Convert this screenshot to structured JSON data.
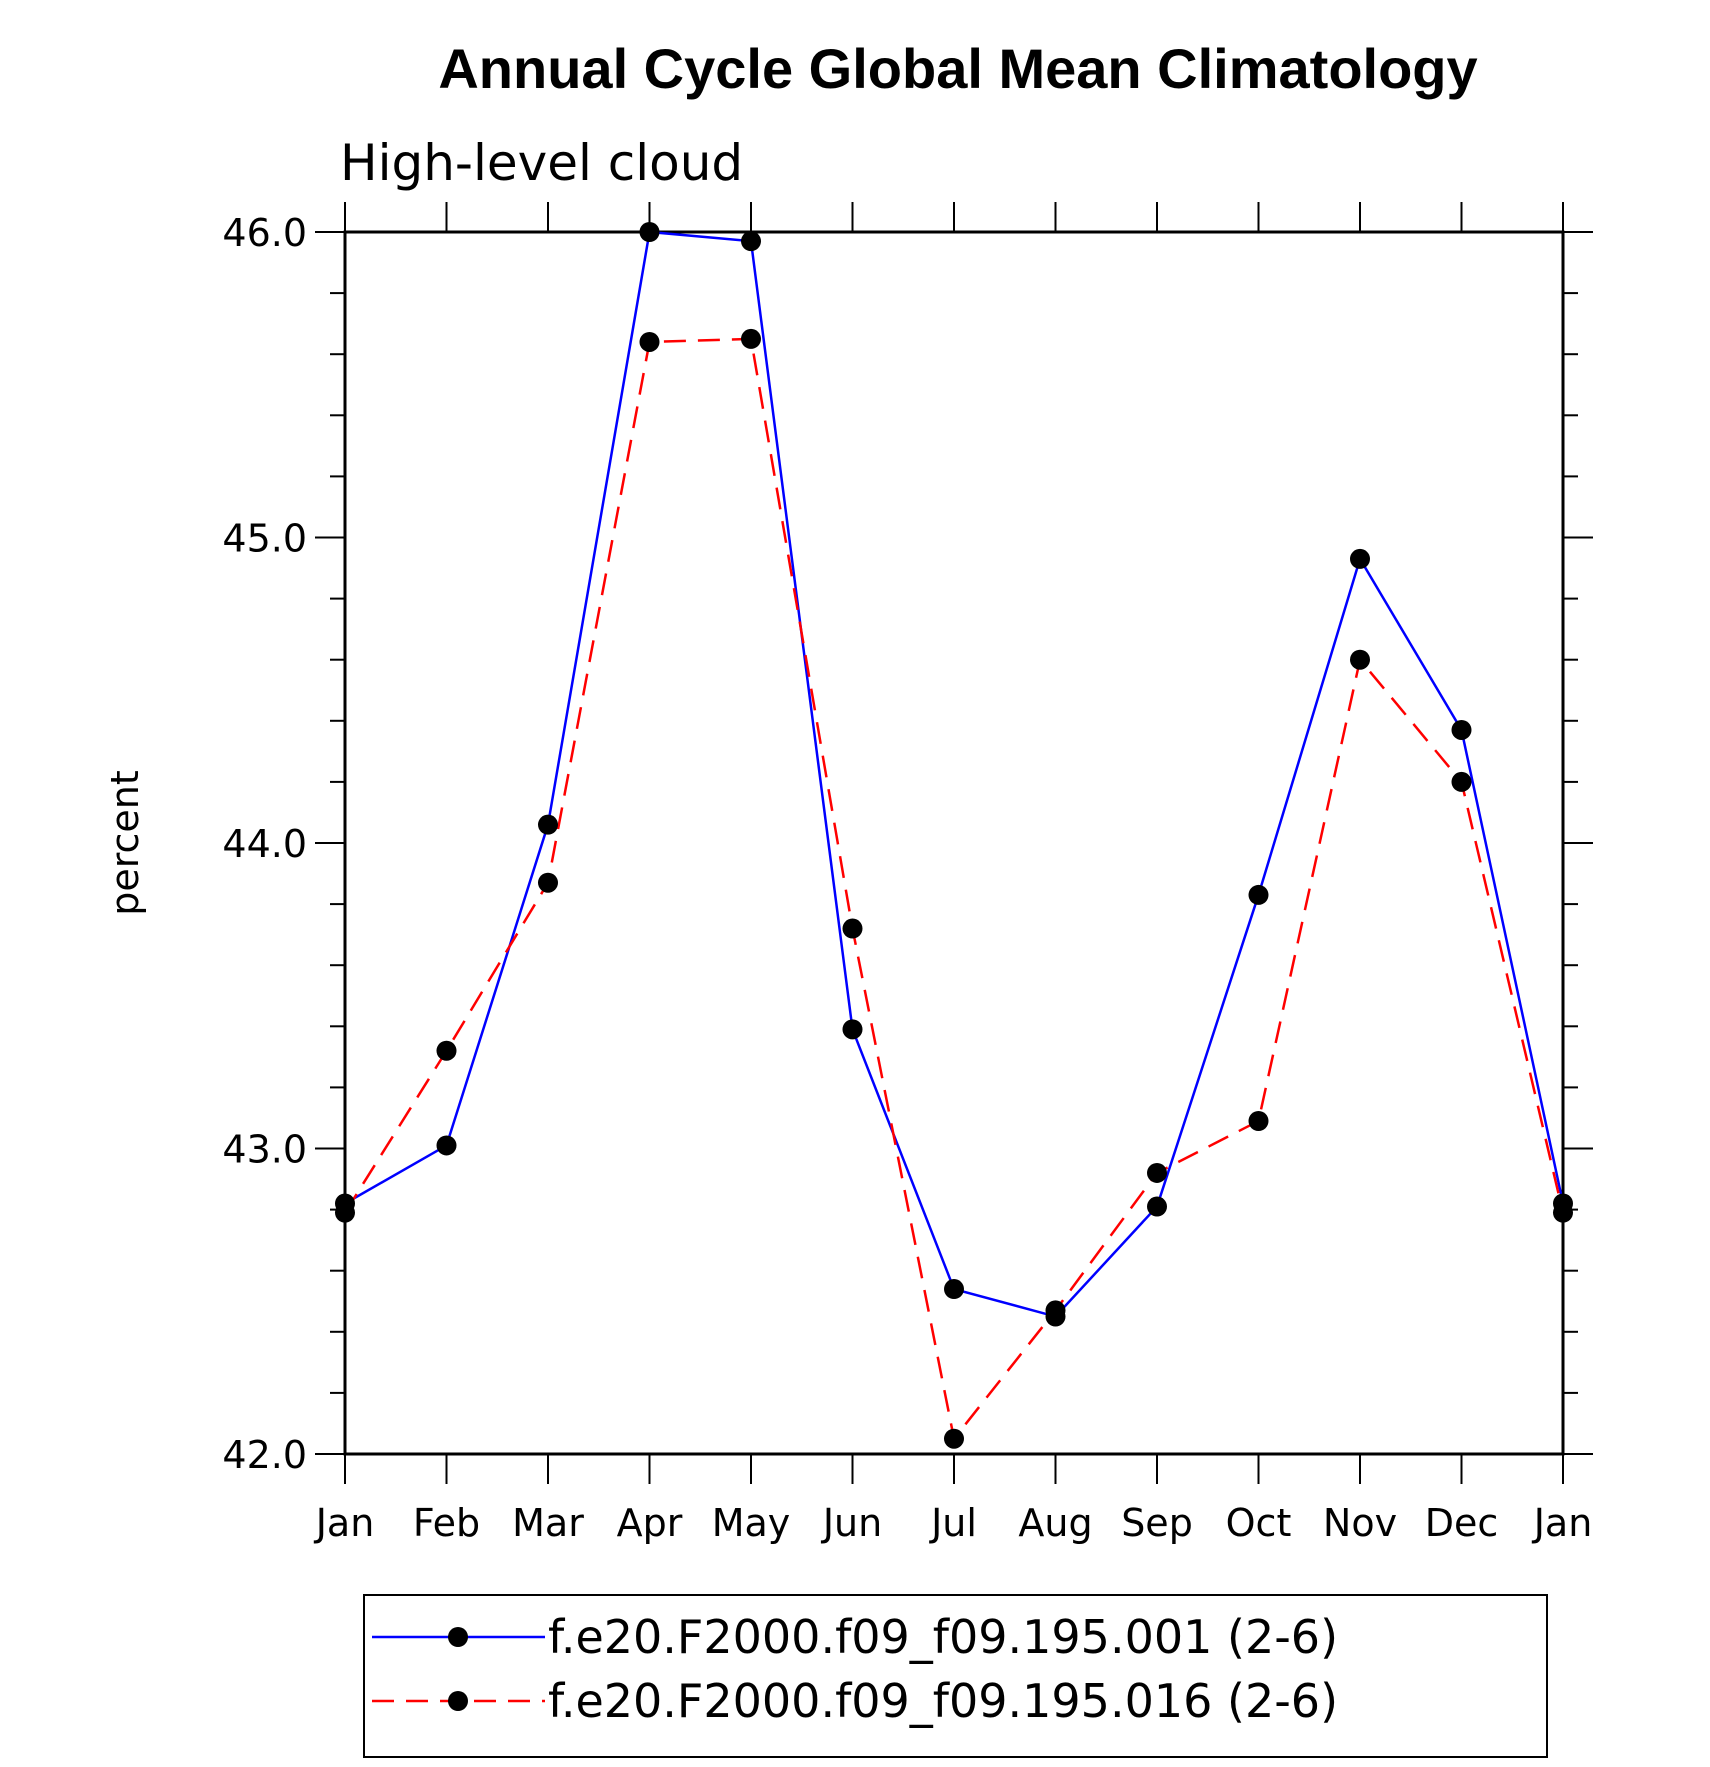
{
  "chart_data": {
    "type": "line",
    "title": "Annual Cycle Global Mean Climatology",
    "subtitle": "High-level cloud",
    "xlabel": "",
    "ylabel": "percent",
    "categories": [
      "Jan",
      "Feb",
      "Mar",
      "Apr",
      "May",
      "Jun",
      "Jul",
      "Aug",
      "Sep",
      "Oct",
      "Nov",
      "Dec",
      "Jan"
    ],
    "ylim": [
      42.0,
      46.0
    ],
    "yticks": [
      "42.0",
      "43.0",
      "44.0",
      "45.0",
      "46.0"
    ],
    "grid": false,
    "legend_position": "bottom",
    "series": [
      {
        "name": "f.e20.F2000.f09_f09.195.001 (2-6)",
        "color": "#0000ff",
        "style": "solid",
        "values": [
          42.82,
          43.01,
          44.06,
          46.0,
          45.97,
          43.39,
          42.54,
          42.45,
          42.81,
          43.83,
          44.93,
          44.37,
          42.82
        ]
      },
      {
        "name": "f.e20.F2000.f09_f09.195.016 (2-6)",
        "color": "#ff0000",
        "style": "dashed",
        "values": [
          42.79,
          43.32,
          43.87,
          45.64,
          45.65,
          43.72,
          42.05,
          42.47,
          42.92,
          43.09,
          44.6,
          44.2,
          42.79
        ]
      }
    ]
  }
}
